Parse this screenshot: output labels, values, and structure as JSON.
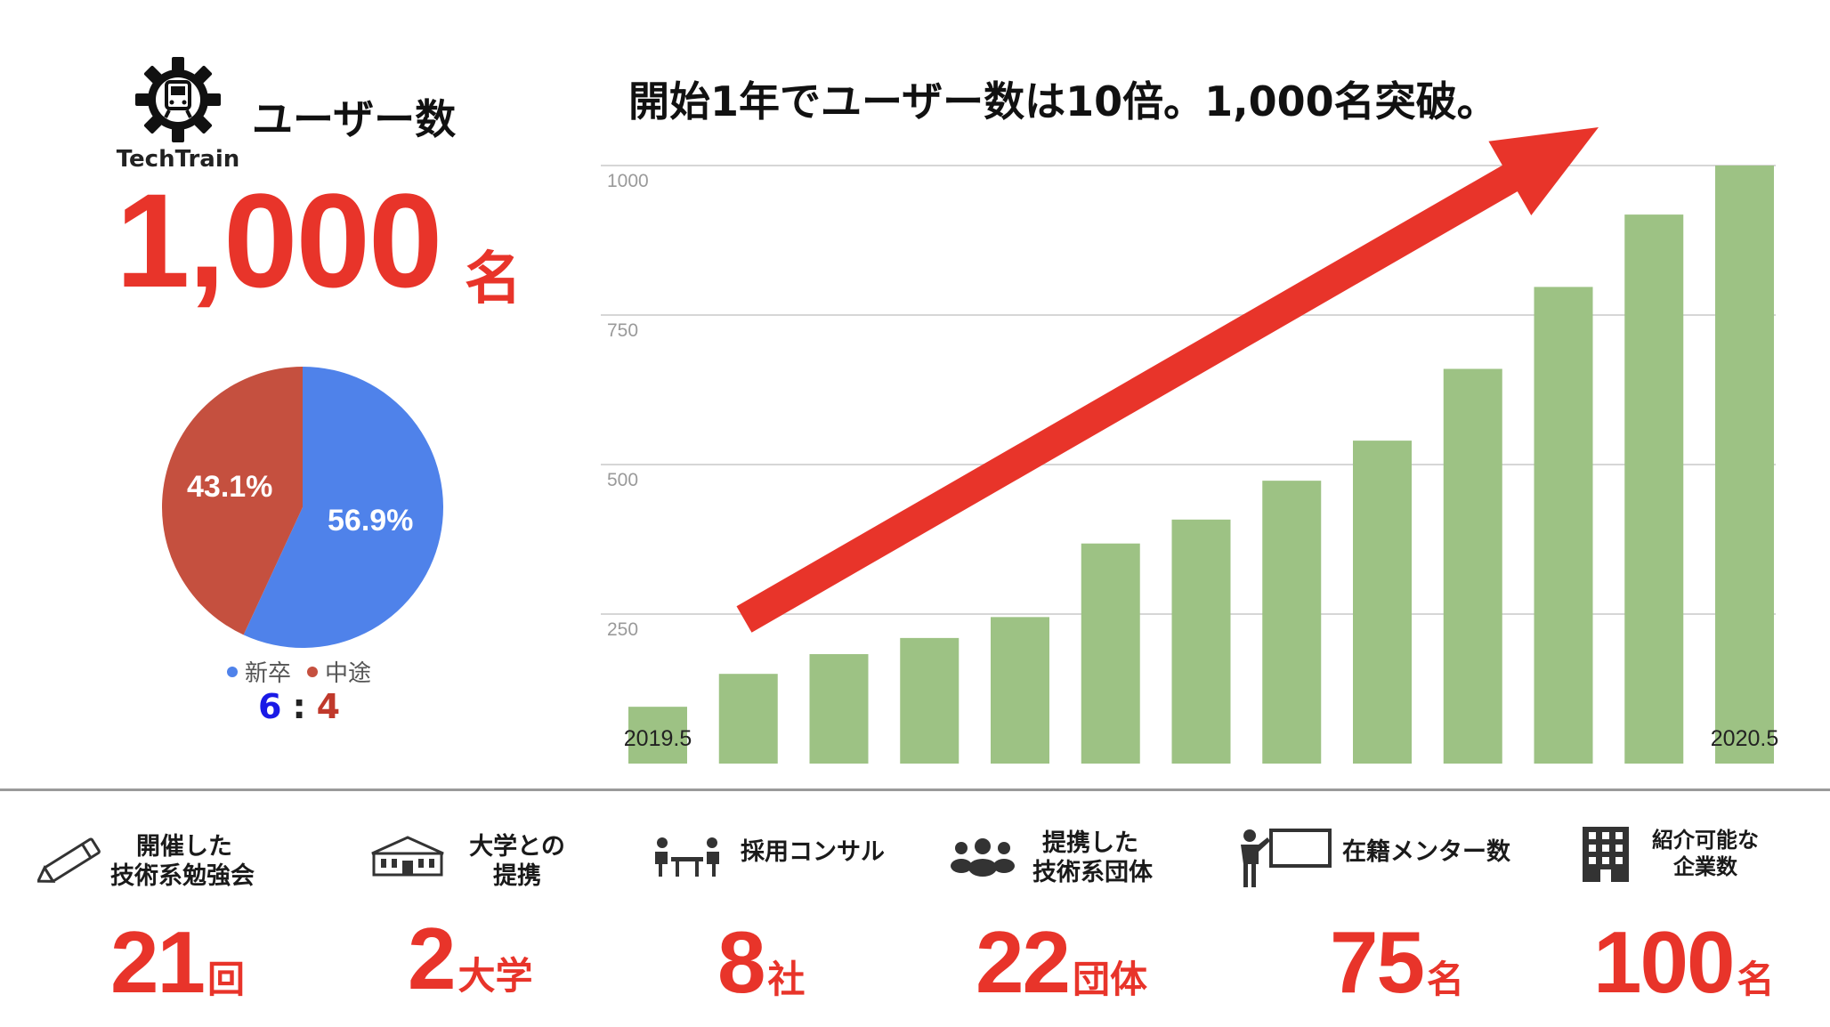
{
  "header": {
    "logo_text": "TechTrain",
    "users_title": "ユーザー数",
    "users_count": "1,000",
    "users_unit": "名"
  },
  "pie": {
    "slices": [
      {
        "name": "新卒",
        "value": 56.9,
        "label": "56.9%",
        "color": "#4f82ea"
      },
      {
        "name": "中途",
        "value": 43.1,
        "label": "43.1%",
        "color": "#c5503f"
      }
    ],
    "ratio_a": "6",
    "ratio_sep": ":",
    "ratio_b": "4"
  },
  "headline": "開始1年でユーザー数は10倍。1,000名突破。",
  "chart_data": {
    "type": "bar",
    "categories": [
      "2019.5",
      "",
      "",
      "",
      "",
      "",
      "",
      "",
      "",
      "",
      "",
      "",
      "2020.5"
    ],
    "values": [
      95,
      150,
      183,
      210,
      245,
      368,
      408,
      473,
      540,
      660,
      797,
      918,
      1000
    ],
    "yticks": [
      250,
      500,
      750,
      1000
    ],
    "ylim": [
      0,
      1000
    ],
    "grid": true,
    "bar_color": "#9dc284",
    "arrow_color": "#e8342a",
    "first_label": "2019.5",
    "last_label": "2020.5"
  },
  "stats": [
    {
      "icon": "pencil-icon",
      "label_lines": [
        "開催した",
        "技術系勉強会"
      ],
      "value": "21",
      "unit": "回"
    },
    {
      "icon": "university-icon",
      "label_lines": [
        "大学との",
        "提携"
      ],
      "value": "2",
      "unit": "大学"
    },
    {
      "icon": "meeting-icon",
      "label_lines": [
        "採用コンサル"
      ],
      "value": "8",
      "unit": "社"
    },
    {
      "icon": "group-icon",
      "label_lines": [
        "提携した",
        "技術系団体"
      ],
      "value": "22",
      "unit": "団体"
    },
    {
      "icon": "presenter-icon",
      "label_lines": [
        "在籍メンター数"
      ],
      "value": "75",
      "unit": "名"
    },
    {
      "icon": "building-icon",
      "label_lines": [
        "紹介可能な",
        "企業数"
      ],
      "value": "100",
      "unit": "名"
    }
  ]
}
